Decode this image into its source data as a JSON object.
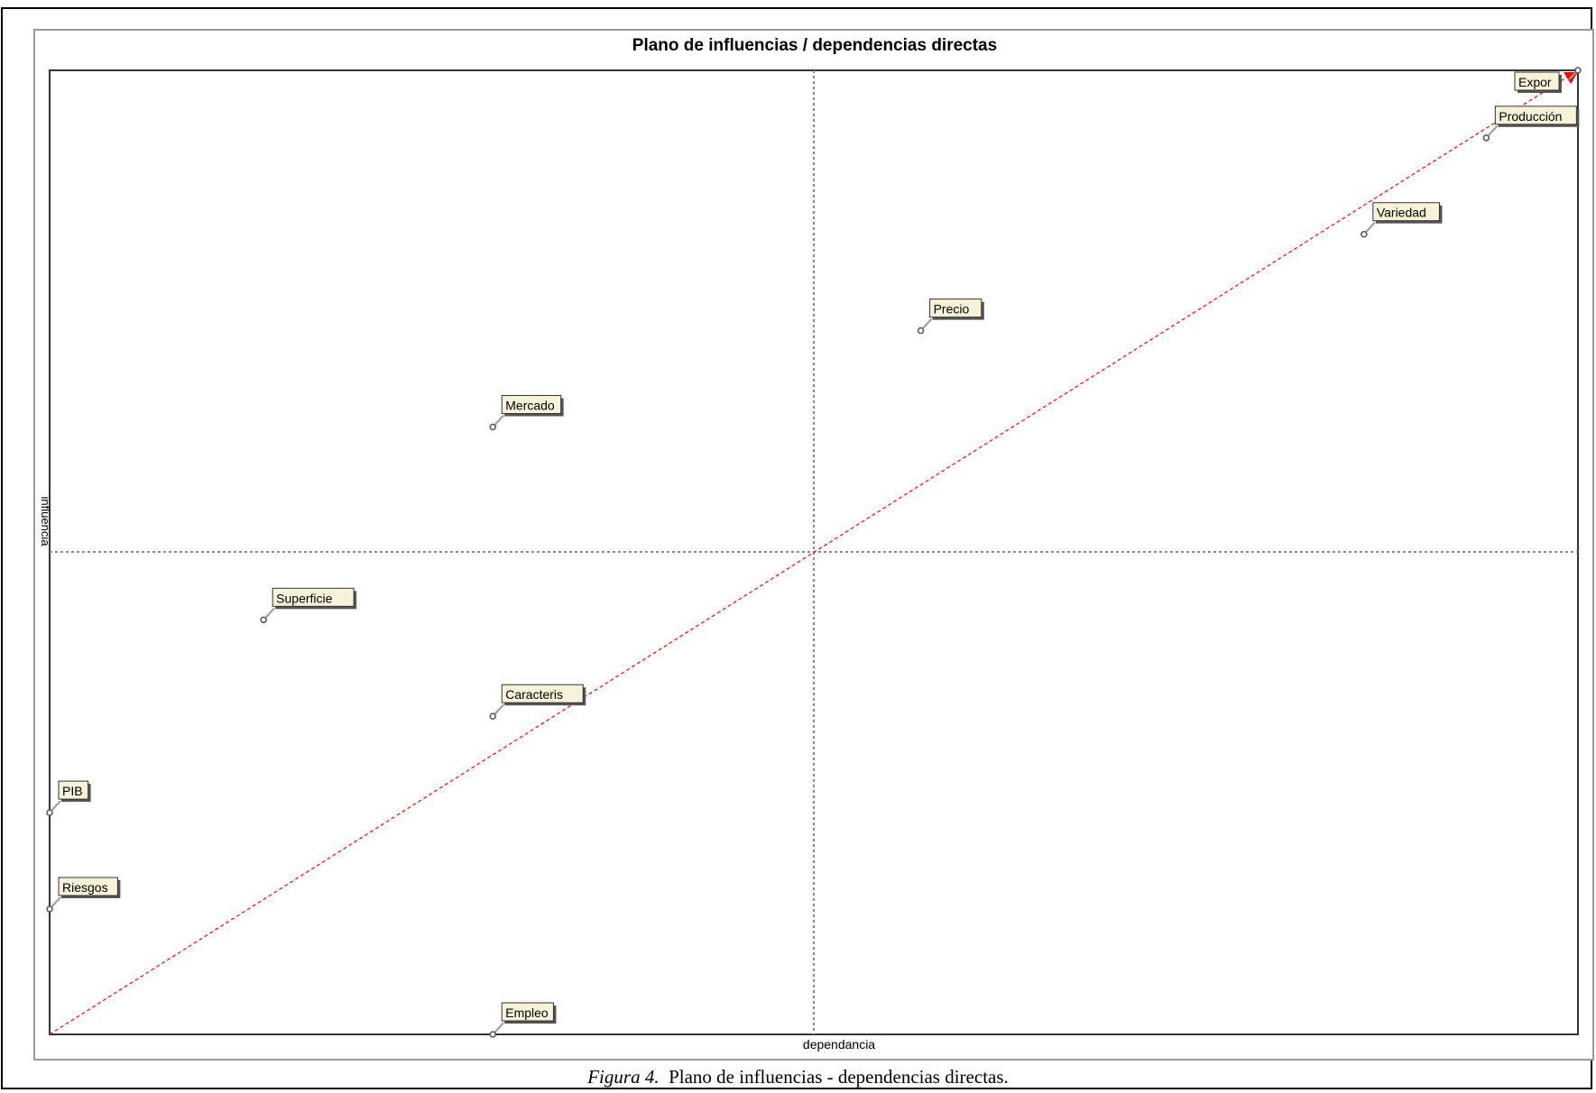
{
  "chart_data": {
    "type": "scatter",
    "title": "Plano de influencias / dependencias directas",
    "xlabel": "dependancia",
    "ylabel": "influencia",
    "xlim": [
      0,
      10
    ],
    "ylim": [
      0,
      10
    ],
    "grid": false,
    "axis_lines": {
      "x_mid": 5,
      "y_mid": 5
    },
    "diagonal_color": "#ff0000",
    "point_color": "#555555",
    "label_bg": "#f7f2d8",
    "points": [
      {
        "label": "Expor",
        "x": 10.0,
        "y": 10.0
      },
      {
        "label": "Producción",
        "x": 9.4,
        "y": 9.3
      },
      {
        "label": "Variedad",
        "x": 8.6,
        "y": 8.3
      },
      {
        "label": "Precio",
        "x": 5.7,
        "y": 7.3
      },
      {
        "label": "Mercado",
        "x": 2.9,
        "y": 6.3
      },
      {
        "label": "Superficie",
        "x": 1.4,
        "y": 4.3
      },
      {
        "label": "Caracteris",
        "x": 2.9,
        "y": 3.3
      },
      {
        "label": "PIB",
        "x": 0.0,
        "y": 2.3
      },
      {
        "label": "Riesgos",
        "x": 0.0,
        "y": 1.3
      },
      {
        "label": "Empleo",
        "x": 2.9,
        "y": 0.0
      }
    ]
  },
  "caption": {
    "prefix": "Figura 4.",
    "text": "Plano de influencias - dependencias directas."
  }
}
